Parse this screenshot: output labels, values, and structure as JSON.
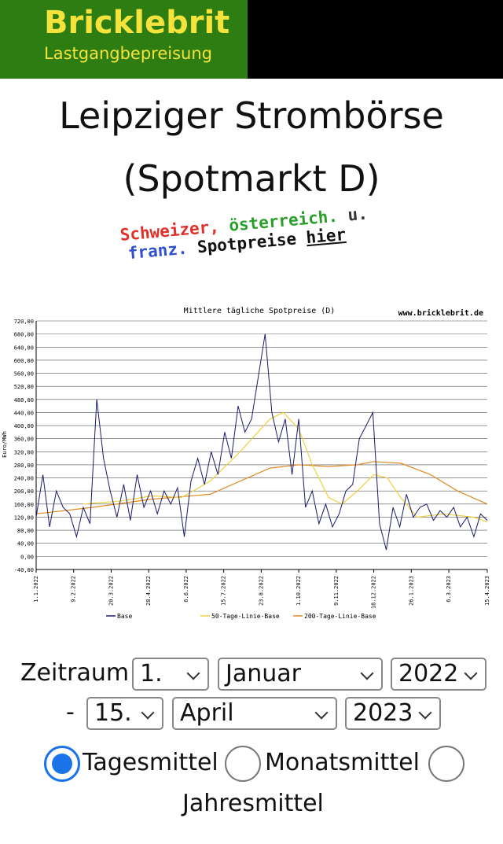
{
  "header": {
    "logo_title": "Bricklebrit",
    "logo_subtitle": "Lastgangbepreisung"
  },
  "title_lines": [
    "Leipziger Strombörse",
    "(Spotmarkt D)"
  ],
  "link_words": [
    "Schweizer,",
    "österreich.",
    "u.",
    "franz.",
    "Spotpreise",
    "hier"
  ],
  "chart_data": {
    "type": "line",
    "title": "Mittlere tägliche Spotpreise (D)",
    "source": "www.bricklebrit.de",
    "y_label": "Euro/MWh",
    "xlim": [
      "1.1.2022",
      "15.4.2023"
    ],
    "xticks": [
      "1.1.2022",
      "9.2.2022",
      "20.3.2022",
      "28.4.2022",
      "6.6.2022",
      "15.7.2022",
      "23.8.2022",
      "1.10.2022",
      "9.11.2022",
      "18.12.2022",
      "26.1.2023",
      "6.3.2023",
      "15.4.2023"
    ],
    "ylim": [
      -40,
      720
    ],
    "yticks": [
      {
        "value": -40,
        "label": "-40,00"
      },
      {
        "value": 0,
        "label": "0,00"
      },
      {
        "value": 40,
        "label": "40,00"
      },
      {
        "value": 80,
        "label": "80,00"
      },
      {
        "value": 120,
        "label": "120,00"
      },
      {
        "value": 160,
        "label": "160,00"
      },
      {
        "value": 200,
        "label": "200,00"
      },
      {
        "value": 240,
        "label": "240,00"
      },
      {
        "value": 280,
        "label": "280,00"
      },
      {
        "value": 320,
        "label": "320,00"
      },
      {
        "value": 360,
        "label": "360,00"
      },
      {
        "value": 400,
        "label": "400,00"
      },
      {
        "value": 440,
        "label": "440,00"
      },
      {
        "value": 480,
        "label": "480,00"
      },
      {
        "value": 520,
        "label": "520,00"
      },
      {
        "value": 560,
        "label": "560,00"
      },
      {
        "value": 600,
        "label": "600,00"
      },
      {
        "value": 640,
        "label": "640,00"
      },
      {
        "value": 680,
        "label": "680,00"
      },
      {
        "value": 720,
        "label": "720,00"
      }
    ],
    "grid": true,
    "series": [
      {
        "name": "Base",
        "color": "#1a1a6e",
        "x": [
          "1.1.2022",
          "8.1.2022",
          "15.1.2022",
          "22.1.2022",
          "29.1.2022",
          "5.2.2022",
          "12.2.2022",
          "19.2.2022",
          "26.2.2022",
          "5.3.2022",
          "12.3.2022",
          "19.3.2022",
          "26.3.2022",
          "2.4.2022",
          "9.4.2022",
          "16.4.2022",
          "23.4.2022",
          "30.4.2022",
          "7.5.2022",
          "14.5.2022",
          "21.5.2022",
          "28.5.2022",
          "4.6.2022",
          "11.6.2022",
          "18.6.2022",
          "25.6.2022",
          "2.7.2022",
          "9.7.2022",
          "16.7.2022",
          "23.7.2022",
          "30.7.2022",
          "6.8.2022",
          "13.8.2022",
          "20.8.2022",
          "27.8.2022",
          "3.9.2022",
          "10.9.2022",
          "17.9.2022",
          "24.9.2022",
          "1.10.2022",
          "8.10.2022",
          "15.10.2022",
          "22.10.2022",
          "29.10.2022",
          "5.11.2022",
          "12.11.2022",
          "19.11.2022",
          "26.11.2022",
          "3.12.2022",
          "10.12.2022",
          "17.12.2022",
          "24.12.2022",
          "31.12.2022",
          "7.1.2023",
          "14.1.2023",
          "21.1.2023",
          "28.1.2023",
          "4.2.2023",
          "11.2.2023",
          "18.2.2023",
          "25.2.2023",
          "4.3.2023",
          "11.3.2023",
          "18.3.2023",
          "25.3.2023",
          "1.4.2023",
          "8.4.2023",
          "15.4.2023"
        ],
        "values": [
          120,
          250,
          90,
          200,
          150,
          130,
          60,
          150,
          100,
          480,
          300,
          200,
          120,
          220,
          110,
          250,
          150,
          200,
          130,
          200,
          160,
          210,
          60,
          230,
          300,
          220,
          320,
          250,
          380,
          300,
          460,
          380,
          420,
          550,
          680,
          440,
          350,
          420,
          250,
          420,
          150,
          200,
          100,
          160,
          90,
          130,
          200,
          220,
          360,
          400,
          440,
          100,
          20,
          150,
          90,
          190,
          120,
          150,
          160,
          110,
          140,
          120,
          150,
          90,
          120,
          60,
          130,
          110
        ]
      },
      {
        "name": "50-Tage-Linie-Base",
        "color": "#f0d040",
        "x": [
          "19.2.2022",
          "1.4.2022",
          "1.5.2022",
          "1.6.2022",
          "1.7.2022",
          "1.8.2022",
          "1.9.2022",
          "15.9.2022",
          "1.10.2022",
          "15.10.2022",
          "1.11.2022",
          "15.11.2022",
          "1.12.2022",
          "18.12.2022",
          "1.1.2023",
          "15.1.2023",
          "1.2.2023",
          "1.3.2023",
          "1.4.2023",
          "15.4.2023"
        ],
        "values": [
          160,
          170,
          185,
          180,
          230,
          320,
          420,
          440,
          390,
          280,
          180,
          160,
          200,
          250,
          240,
          180,
          120,
          130,
          120,
          105
        ]
      },
      {
        "name": "200-Tage-Linie-Base",
        "color": "#e08a20",
        "x": [
          "1.1.2022",
          "1.3.2022",
          "1.5.2022",
          "1.7.2022",
          "1.8.2022",
          "1.9.2022",
          "1.10.2022",
          "1.11.2022",
          "1.12.2022",
          "18.12.2022",
          "15.1.2023",
          "15.2.2023",
          "15.3.2023",
          "15.4.2023"
        ],
        "values": [
          130,
          150,
          175,
          190,
          230,
          270,
          280,
          275,
          280,
          290,
          285,
          250,
          200,
          160
        ]
      }
    ]
  },
  "form": {
    "label": "Zeitraum",
    "from": {
      "day": "1.",
      "month": "Januar",
      "year": "2022"
    },
    "dash": "-",
    "to": {
      "day": "15.",
      "month": "April",
      "year": "2023"
    },
    "options": [
      "Tagesmittel",
      "Monatsmittel",
      "Jahresmittel"
    ]
  }
}
